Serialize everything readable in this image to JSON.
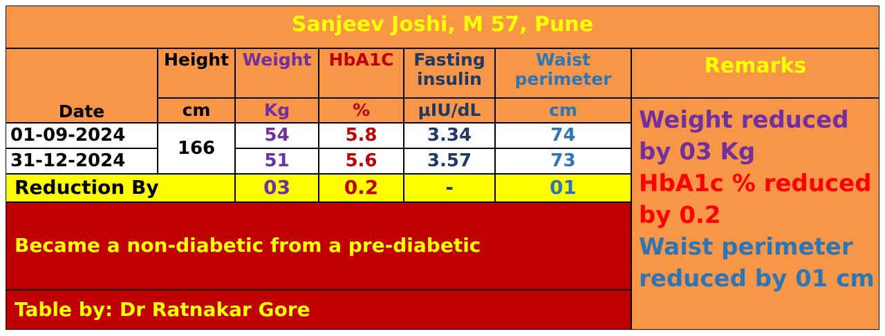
{
  "title": "Sanjeev Joshi, M 57, Pune",
  "table": {
    "date_header": "Date",
    "headers": [
      "Height",
      "Weight",
      "HbA1C",
      "Fasting insulin",
      "Waist perimeter"
    ],
    "units": [
      "cm",
      "Kg",
      "%",
      "µIU/dL",
      "cm"
    ],
    "height": 166,
    "rows": [
      [
        "01-09-2024",
        54,
        5.8,
        3.34,
        74
      ],
      [
        "31-12-2024",
        51,
        5.6,
        3.57,
        73
      ]
    ],
    "reduction_label": "Reduction By",
    "reduction": [
      "03",
      "0.2",
      "-",
      "01"
    ]
  },
  "remarks": {
    "title": "Remarks",
    "items": [
      "Weight reduced by 03 Kg",
      "HbA1c % reduced by 0.2",
      "Waist perimeter reduced by 01 cm"
    ]
  },
  "status": "Became a non-diabetic from a pre-diabetic",
  "credit": "Table by: Dr Ratnakar Gore"
}
